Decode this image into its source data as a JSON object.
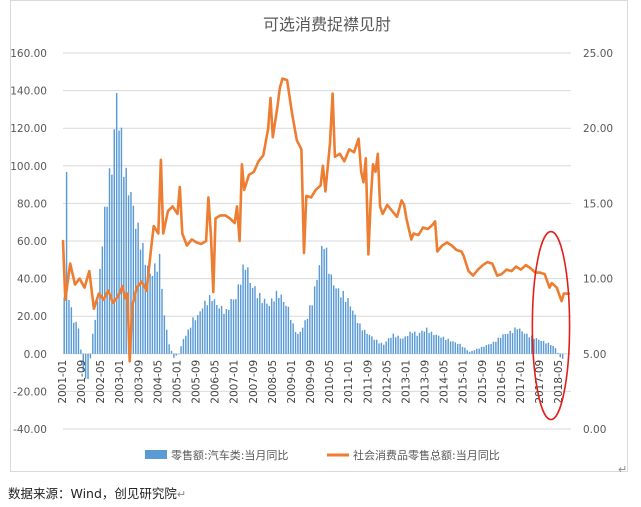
{
  "source_text": "数据来源：Wind，创见研究院",
  "return_mark": "↵",
  "chart_data": {
    "type": "bar+line",
    "title": "可选消费捉襟见肘",
    "y_left": {
      "min": -40,
      "max": 160,
      "step": 20,
      "ticks": [
        "-40.00",
        "-20.00",
        "0.00",
        "20.00",
        "40.00",
        "60.00",
        "80.00",
        "100.00",
        "120.00",
        "140.00",
        "160.00"
      ]
    },
    "y_right": {
      "min": 0,
      "max": 25,
      "step": 5,
      "ticks": [
        "0.00",
        "5.00",
        "10.00",
        "15.00",
        "20.00",
        "25.00"
      ]
    },
    "x_tick_labels": [
      "2001-01",
      "2001-09",
      "2002-05",
      "2003-01",
      "2003-09",
      "2004-05",
      "2005-01",
      "2005-09",
      "2006-05",
      "2007-01",
      "2007-09",
      "2008-05",
      "2009-01",
      "2009-09",
      "2010-05",
      "2011-01",
      "2011-09",
      "2012-05",
      "2013-01",
      "2013-09",
      "2014-05",
      "2015-01",
      "2015-09",
      "2016-05",
      "2017-01",
      "2017-09",
      "2018-05"
    ],
    "legend_position": "bottom",
    "grid": "horizontal",
    "series": [
      {
        "name": "零售额:汽车类:当月同比",
        "type": "bar",
        "axis": "left",
        "color": "#5b9bd5",
        "anchors": [
          [
            2001.0,
            30
          ],
          [
            2001.08,
            96
          ],
          [
            2001.17,
            28
          ],
          [
            2001.33,
            18
          ],
          [
            2001.5,
            14
          ],
          [
            2001.67,
            -10
          ],
          [
            2001.83,
            -15
          ],
          [
            2002.0,
            10
          ],
          [
            2002.17,
            28
          ],
          [
            2002.33,
            60
          ],
          [
            2002.5,
            85
          ],
          [
            2002.67,
            100
          ],
          [
            2002.83,
            136
          ],
          [
            2002.92,
            125
          ],
          [
            2003.0,
            112
          ],
          [
            2003.17,
            92
          ],
          [
            2003.33,
            85
          ],
          [
            2003.5,
            70
          ],
          [
            2003.67,
            60
          ],
          [
            2003.83,
            50
          ],
          [
            2004.0,
            42
          ],
          [
            2004.17,
            45
          ],
          [
            2004.33,
            50
          ],
          [
            2004.42,
            36
          ],
          [
            2004.5,
            20
          ],
          [
            2004.67,
            5
          ],
          [
            2004.83,
            -2
          ],
          [
            2005.0,
            0
          ],
          [
            2005.17,
            8
          ],
          [
            2005.33,
            12
          ],
          [
            2005.5,
            18
          ],
          [
            2005.67,
            20
          ],
          [
            2005.83,
            25
          ],
          [
            2006.0,
            28
          ],
          [
            2006.17,
            30
          ],
          [
            2006.33,
            26
          ],
          [
            2006.5,
            24
          ],
          [
            2006.67,
            22
          ],
          [
            2006.83,
            28
          ],
          [
            2007.0,
            30
          ],
          [
            2007.17,
            40
          ],
          [
            2007.33,
            48
          ],
          [
            2007.42,
            44
          ],
          [
            2007.5,
            38
          ],
          [
            2007.67,
            34
          ],
          [
            2007.83,
            30
          ],
          [
            2008.0,
            28
          ],
          [
            2008.17,
            26
          ],
          [
            2008.33,
            30
          ],
          [
            2008.5,
            32
          ],
          [
            2008.67,
            28
          ],
          [
            2008.83,
            24
          ],
          [
            2009.0,
            15
          ],
          [
            2009.17,
            10
          ],
          [
            2009.33,
            14
          ],
          [
            2009.5,
            20
          ],
          [
            2009.67,
            28
          ],
          [
            2009.83,
            40
          ],
          [
            2010.0,
            55
          ],
          [
            2010.08,
            60
          ],
          [
            2010.17,
            52
          ],
          [
            2010.33,
            40
          ],
          [
            2010.5,
            35
          ],
          [
            2010.67,
            32
          ],
          [
            2010.83,
            30
          ],
          [
            2011.0,
            26
          ],
          [
            2011.17,
            20
          ],
          [
            2011.33,
            15
          ],
          [
            2011.5,
            12
          ],
          [
            2011.67,
            10
          ],
          [
            2011.83,
            8
          ],
          [
            2012.0,
            6
          ],
          [
            2012.17,
            5
          ],
          [
            2012.33,
            8
          ],
          [
            2012.5,
            10
          ],
          [
            2012.67,
            9
          ],
          [
            2012.83,
            8
          ],
          [
            2013.0,
            10
          ],
          [
            2013.17,
            12
          ],
          [
            2013.33,
            10
          ],
          [
            2013.5,
            12
          ],
          [
            2013.67,
            13
          ],
          [
            2013.83,
            11
          ],
          [
            2014.0,
            10
          ],
          [
            2014.17,
            9
          ],
          [
            2014.33,
            8
          ],
          [
            2014.5,
            7
          ],
          [
            2014.67,
            6
          ],
          [
            2014.83,
            5
          ],
          [
            2015.0,
            3
          ],
          [
            2015.17,
            1
          ],
          [
            2015.33,
            2
          ],
          [
            2015.5,
            3
          ],
          [
            2015.67,
            4
          ],
          [
            2015.83,
            5
          ],
          [
            2016.0,
            6
          ],
          [
            2016.17,
            8
          ],
          [
            2016.33,
            10
          ],
          [
            2016.5,
            11
          ],
          [
            2016.67,
            12
          ],
          [
            2016.83,
            14
          ],
          [
            2017.0,
            12
          ],
          [
            2017.17,
            10
          ],
          [
            2017.33,
            9
          ],
          [
            2017.5,
            8
          ],
          [
            2017.67,
            7
          ],
          [
            2017.83,
            6
          ],
          [
            2018.0,
            5
          ],
          [
            2018.17,
            3
          ],
          [
            2018.33,
            -2
          ],
          [
            2018.5,
            -3
          ],
          [
            2018.67,
            -2
          ]
        ]
      },
      {
        "name": "社会消费品零售总额:当月同比",
        "type": "line",
        "axis": "right",
        "color": "#ed7d31",
        "anchors": [
          [
            2001.0,
            12.5
          ],
          [
            2001.08,
            8.6
          ],
          [
            2001.25,
            11.0
          ],
          [
            2001.42,
            9.6
          ],
          [
            2001.58,
            10.0
          ],
          [
            2001.75,
            9.4
          ],
          [
            2001.92,
            10.5
          ],
          [
            2002.08,
            8.0
          ],
          [
            2002.25,
            9.0
          ],
          [
            2002.42,
            8.6
          ],
          [
            2002.58,
            9.2
          ],
          [
            2002.75,
            8.4
          ],
          [
            2002.92,
            8.8
          ],
          [
            2003.08,
            9.5
          ],
          [
            2003.17,
            8.7
          ],
          [
            2003.25,
            9.0
          ],
          [
            2003.33,
            4.5
          ],
          [
            2003.42,
            8.2
          ],
          [
            2003.58,
            9.4
          ],
          [
            2003.75,
            9.8
          ],
          [
            2003.92,
            9.2
          ],
          [
            2004.08,
            12.0
          ],
          [
            2004.17,
            13.5
          ],
          [
            2004.33,
            13.0
          ],
          [
            2004.42,
            17.9
          ],
          [
            2004.5,
            13.0
          ],
          [
            2004.67,
            14.5
          ],
          [
            2004.83,
            14.8
          ],
          [
            2005.0,
            14.3
          ],
          [
            2005.08,
            16.1
          ],
          [
            2005.17,
            13.0
          ],
          [
            2005.33,
            12.2
          ],
          [
            2005.5,
            12.6
          ],
          [
            2005.67,
            12.4
          ],
          [
            2005.83,
            12.3
          ],
          [
            2006.0,
            12.5
          ],
          [
            2006.08,
            15.4
          ],
          [
            2006.17,
            12.8
          ],
          [
            2006.25,
            9.1
          ],
          [
            2006.33,
            14.0
          ],
          [
            2006.5,
            14.2
          ],
          [
            2006.67,
            14.2
          ],
          [
            2006.83,
            14.0
          ],
          [
            2007.0,
            13.7
          ],
          [
            2007.08,
            14.8
          ],
          [
            2007.17,
            12.5
          ],
          [
            2007.25,
            17.6
          ],
          [
            2007.33,
            15.9
          ],
          [
            2007.5,
            16.9
          ],
          [
            2007.67,
            17.1
          ],
          [
            2007.83,
            17.8
          ],
          [
            2008.0,
            18.2
          ],
          [
            2008.17,
            20.0
          ],
          [
            2008.25,
            22.0
          ],
          [
            2008.33,
            19.4
          ],
          [
            2008.5,
            21.5
          ],
          [
            2008.58,
            22.7
          ],
          [
            2008.67,
            23.3
          ],
          [
            2008.83,
            23.2
          ],
          [
            2009.0,
            21.0
          ],
          [
            2009.17,
            19.2
          ],
          [
            2009.33,
            18.6
          ],
          [
            2009.42,
            11.7
          ],
          [
            2009.5,
            15.5
          ],
          [
            2009.67,
            15.4
          ],
          [
            2009.83,
            15.9
          ],
          [
            2010.0,
            16.2
          ],
          [
            2010.08,
            17.5
          ],
          [
            2010.17,
            15.8
          ],
          [
            2010.33,
            19.0
          ],
          [
            2010.42,
            22.3
          ],
          [
            2010.5,
            18.1
          ],
          [
            2010.67,
            18.3
          ],
          [
            2010.83,
            17.8
          ],
          [
            2011.0,
            18.6
          ],
          [
            2011.17,
            18.4
          ],
          [
            2011.33,
            19.3
          ],
          [
            2011.42,
            17.1
          ],
          [
            2011.5,
            16.4
          ],
          [
            2011.58,
            18.0
          ],
          [
            2011.67,
            11.6
          ],
          [
            2011.75,
            15.2
          ],
          [
            2011.83,
            17.6
          ],
          [
            2011.92,
            17.1
          ],
          [
            2012.0,
            18.3
          ],
          [
            2012.08,
            14.8
          ],
          [
            2012.17,
            14.3
          ],
          [
            2012.33,
            14.9
          ],
          [
            2012.5,
            14.5
          ],
          [
            2012.67,
            14.1
          ],
          [
            2012.83,
            15.2
          ],
          [
            2012.92,
            14.9
          ],
          [
            2013.0,
            14.0
          ],
          [
            2013.17,
            12.6
          ],
          [
            2013.25,
            13.0
          ],
          [
            2013.42,
            12.9
          ],
          [
            2013.58,
            13.4
          ],
          [
            2013.75,
            13.3
          ],
          [
            2013.92,
            13.6
          ],
          [
            2014.0,
            13.8
          ],
          [
            2014.08,
            11.8
          ],
          [
            2014.25,
            12.2
          ],
          [
            2014.42,
            12.4
          ],
          [
            2014.58,
            12.2
          ],
          [
            2014.75,
            11.9
          ],
          [
            2014.92,
            11.8
          ],
          [
            2015.0,
            11.5
          ],
          [
            2015.17,
            10.5
          ],
          [
            2015.33,
            10.2
          ],
          [
            2015.5,
            10.6
          ],
          [
            2015.67,
            10.9
          ],
          [
            2015.83,
            11.1
          ],
          [
            2016.0,
            11.0
          ],
          [
            2016.17,
            10.2
          ],
          [
            2016.33,
            10.3
          ],
          [
            2016.5,
            10.6
          ],
          [
            2016.67,
            10.5
          ],
          [
            2016.83,
            10.8
          ],
          [
            2017.0,
            10.6
          ],
          [
            2017.17,
            10.9
          ],
          [
            2017.33,
            10.7
          ],
          [
            2017.5,
            10.4
          ],
          [
            2017.67,
            10.4
          ],
          [
            2017.83,
            10.3
          ],
          [
            2018.0,
            9.4
          ],
          [
            2018.08,
            9.7
          ],
          [
            2018.25,
            9.4
          ],
          [
            2018.42,
            8.5
          ],
          [
            2018.5,
            9.0
          ],
          [
            2018.67,
            9.0
          ]
        ]
      }
    ],
    "annotation": {
      "shape": "ellipse",
      "color": "#e0201b",
      "x_center": 2018.05,
      "y_center_left": 15,
      "x_half_width": 0.65,
      "y_half_height_left": 50
    }
  }
}
